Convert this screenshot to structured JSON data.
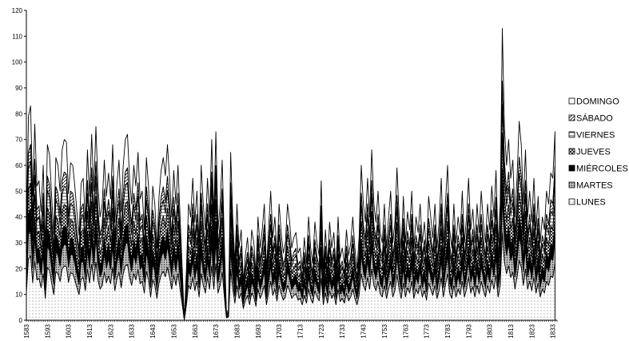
{
  "chart_data": {
    "type": "area",
    "stacked": true,
    "title": "",
    "xlabel": "",
    "ylabel": "",
    "ylim": [
      0,
      120
    ],
    "yticks": [
      0,
      10,
      20,
      30,
      40,
      50,
      60,
      70,
      80,
      90,
      100,
      110,
      120
    ],
    "xlim": [
      1583,
      1835
    ],
    "xticks": [
      1583,
      1593,
      1603,
      1613,
      1623,
      1633,
      1643,
      1653,
      1663,
      1673,
      1683,
      1693,
      1703,
      1713,
      1723,
      1733,
      1743,
      1753,
      1763,
      1773,
      1783,
      1793,
      1803,
      1813,
      1823,
      1833
    ],
    "xtick_labels": [
      "1583",
      "1593",
      "1603",
      "1613",
      "1623",
      "1633",
      "1643",
      "1653",
      "1663",
      "1673",
      "1683",
      "1693",
      "1703",
      "1713",
      "1723",
      "1733",
      "1743",
      "1753",
      "1763",
      "1773",
      "1783",
      "1793",
      "1803",
      "1813",
      "1823",
      "1833"
    ],
    "grid": false,
    "legend_position": "right",
    "series_colors": {
      "DOMINGO": "#ffffff",
      "SÁBADO": "#bdbdbd",
      "VIERNES": "#e6e6e6",
      "JUEVES": "#9a9a9a",
      "MIÉRCOLES": "#000000",
      "MARTES": "#6e6e6e",
      "LUNES": "#f4f4f4"
    },
    "total_anchors": [
      [
        1583,
        35
      ],
      [
        1584,
        79
      ],
      [
        1585,
        83
      ],
      [
        1586,
        48
      ],
      [
        1587,
        76
      ],
      [
        1588,
        52
      ],
      [
        1589,
        54
      ],
      [
        1590,
        42
      ],
      [
        1591,
        60
      ],
      [
        1592,
        28
      ],
      [
        1593,
        68
      ],
      [
        1594,
        64
      ],
      [
        1595,
        48
      ],
      [
        1596,
        33
      ],
      [
        1597,
        63
      ],
      [
        1598,
        60
      ],
      [
        1599,
        50
      ],
      [
        1600,
        66
      ],
      [
        1601,
        70
      ],
      [
        1602,
        69
      ],
      [
        1603,
        49
      ],
      [
        1604,
        61
      ],
      [
        1605,
        60
      ],
      [
        1606,
        52
      ],
      [
        1607,
        42
      ],
      [
        1608,
        33
      ],
      [
        1609,
        53
      ],
      [
        1610,
        55
      ],
      [
        1611,
        38
      ],
      [
        1612,
        66
      ],
      [
        1613,
        48
      ],
      [
        1614,
        72
      ],
      [
        1615,
        50
      ],
      [
        1616,
        75
      ],
      [
        1617,
        52
      ],
      [
        1618,
        40
      ],
      [
        1619,
        45
      ],
      [
        1620,
        62
      ],
      [
        1621,
        48
      ],
      [
        1622,
        57
      ],
      [
        1623,
        47
      ],
      [
        1624,
        68
      ],
      [
        1625,
        38
      ],
      [
        1626,
        53
      ],
      [
        1627,
        62
      ],
      [
        1628,
        42
      ],
      [
        1629,
        60
      ],
      [
        1630,
        70
      ],
      [
        1631,
        72
      ],
      [
        1632,
        55
      ],
      [
        1633,
        45
      ],
      [
        1634,
        60
      ],
      [
        1635,
        52
      ],
      [
        1636,
        65
      ],
      [
        1637,
        47
      ],
      [
        1638,
        50
      ],
      [
        1639,
        35
      ],
      [
        1640,
        63
      ],
      [
        1641,
        52
      ],
      [
        1642,
        30
      ],
      [
        1643,
        52
      ],
      [
        1644,
        45
      ],
      [
        1645,
        28
      ],
      [
        1646,
        48
      ],
      [
        1647,
        58
      ],
      [
        1648,
        63
      ],
      [
        1649,
        56
      ],
      [
        1650,
        68
      ],
      [
        1651,
        55
      ],
      [
        1652,
        40
      ],
      [
        1653,
        58
      ],
      [
        1654,
        45
      ],
      [
        1655,
        60
      ],
      [
        1656,
        40
      ],
      [
        1657,
        20
      ],
      [
        1658,
        0
      ],
      [
        1659,
        20
      ],
      [
        1660,
        45
      ],
      [
        1661,
        40
      ],
      [
        1662,
        55
      ],
      [
        1663,
        38
      ],
      [
        1664,
        50
      ],
      [
        1665,
        30
      ],
      [
        1666,
        60
      ],
      [
        1667,
        45
      ],
      [
        1668,
        35
      ],
      [
        1669,
        55
      ],
      [
        1670,
        40
      ],
      [
        1671,
        70
      ],
      [
        1672,
        40
      ],
      [
        1673,
        73
      ],
      [
        1674,
        35
      ],
      [
        1675,
        45
      ],
      [
        1676,
        62
      ],
      [
        1677,
        30
      ],
      [
        1678,
        3
      ],
      [
        1679,
        4
      ],
      [
        1680,
        65
      ],
      [
        1681,
        40
      ],
      [
        1682,
        22
      ],
      [
        1683,
        45
      ],
      [
        1684,
        28
      ],
      [
        1685,
        35
      ],
      [
        1686,
        15
      ],
      [
        1687,
        25
      ],
      [
        1688,
        32
      ],
      [
        1689,
        20
      ],
      [
        1690,
        35
      ],
      [
        1691,
        30
      ],
      [
        1692,
        18
      ],
      [
        1693,
        40
      ],
      [
        1694,
        28
      ],
      [
        1695,
        35
      ],
      [
        1696,
        45
      ],
      [
        1697,
        20
      ],
      [
        1698,
        35
      ],
      [
        1699,
        50
      ],
      [
        1700,
        32
      ],
      [
        1701,
        40
      ],
      [
        1702,
        25
      ],
      [
        1703,
        45
      ],
      [
        1704,
        34
      ],
      [
        1705,
        26
      ],
      [
        1706,
        30
      ],
      [
        1707,
        45
      ],
      [
        1708,
        38
      ],
      [
        1709,
        28
      ],
      [
        1710,
        32
      ],
      [
        1711,
        34
      ],
      [
        1712,
        26
      ],
      [
        1713,
        28
      ],
      [
        1714,
        20
      ],
      [
        1715,
        32
      ],
      [
        1716,
        22
      ],
      [
        1717,
        40
      ],
      [
        1718,
        28
      ],
      [
        1719,
        22
      ],
      [
        1720,
        38
      ],
      [
        1721,
        30
      ],
      [
        1722,
        25
      ],
      [
        1723,
        54
      ],
      [
        1724,
        20
      ],
      [
        1725,
        35
      ],
      [
        1726,
        22
      ],
      [
        1727,
        38
      ],
      [
        1728,
        28
      ],
      [
        1729,
        34
      ],
      [
        1730,
        20
      ],
      [
        1731,
        40
      ],
      [
        1732,
        24
      ],
      [
        1733,
        28
      ],
      [
        1734,
        22
      ],
      [
        1735,
        35
      ],
      [
        1736,
        25
      ],
      [
        1737,
        30
      ],
      [
        1738,
        40
      ],
      [
        1739,
        28
      ],
      [
        1740,
        20
      ],
      [
        1741,
        32
      ],
      [
        1742,
        60
      ],
      [
        1743,
        45
      ],
      [
        1744,
        38
      ],
      [
        1745,
        55
      ],
      [
        1746,
        40
      ],
      [
        1747,
        66
      ],
      [
        1748,
        45
      ],
      [
        1749,
        38
      ],
      [
        1750,
        50
      ],
      [
        1751,
        34
      ],
      [
        1752,
        30
      ],
      [
        1753,
        45
      ],
      [
        1754,
        28
      ],
      [
        1755,
        40
      ],
      [
        1756,
        50
      ],
      [
        1757,
        30
      ],
      [
        1758,
        38
      ],
      [
        1759,
        59
      ],
      [
        1760,
        40
      ],
      [
        1761,
        28
      ],
      [
        1762,
        48
      ],
      [
        1763,
        30
      ],
      [
        1764,
        42
      ],
      [
        1765,
        35
      ],
      [
        1766,
        50
      ],
      [
        1767,
        28
      ],
      [
        1768,
        40
      ],
      [
        1769,
        34
      ],
      [
        1770,
        45
      ],
      [
        1771,
        30
      ],
      [
        1772,
        38
      ],
      [
        1773,
        26
      ],
      [
        1774,
        48
      ],
      [
        1775,
        40
      ],
      [
        1776,
        32
      ],
      [
        1777,
        45
      ],
      [
        1778,
        28
      ],
      [
        1779,
        38
      ],
      [
        1780,
        55
      ],
      [
        1781,
        30
      ],
      [
        1782,
        45
      ],
      [
        1783,
        60
      ],
      [
        1784,
        35
      ],
      [
        1785,
        28
      ],
      [
        1786,
        45
      ],
      [
        1787,
        30
      ],
      [
        1788,
        40
      ],
      [
        1789,
        33
      ],
      [
        1790,
        50
      ],
      [
        1791,
        30
      ],
      [
        1792,
        40
      ],
      [
        1793,
        55
      ],
      [
        1794,
        35
      ],
      [
        1795,
        43
      ],
      [
        1796,
        30
      ],
      [
        1797,
        45
      ],
      [
        1798,
        34
      ],
      [
        1799,
        50
      ],
      [
        1800,
        38
      ],
      [
        1801,
        30
      ],
      [
        1802,
        45
      ],
      [
        1803,
        35
      ],
      [
        1804,
        52
      ],
      [
        1805,
        40
      ],
      [
        1806,
        58
      ],
      [
        1807,
        30
      ],
      [
        1808,
        45
      ],
      [
        1809,
        113
      ],
      [
        1810,
        75
      ],
      [
        1811,
        60
      ],
      [
        1812,
        70
      ],
      [
        1813,
        55
      ],
      [
        1814,
        62
      ],
      [
        1815,
        40
      ],
      [
        1816,
        55
      ],
      [
        1817,
        77
      ],
      [
        1818,
        68
      ],
      [
        1819,
        45
      ],
      [
        1820,
        66
      ],
      [
        1821,
        40
      ],
      [
        1822,
        50
      ],
      [
        1823,
        38
      ],
      [
        1824,
        55
      ],
      [
        1825,
        35
      ],
      [
        1826,
        48
      ],
      [
        1827,
        30
      ],
      [
        1828,
        40
      ],
      [
        1829,
        35
      ],
      [
        1830,
        50
      ],
      [
        1831,
        45
      ],
      [
        1832,
        57
      ],
      [
        1833,
        55
      ],
      [
        1834,
        73
      ]
    ],
    "layer_shares": [
      0.3,
      0.12,
      0.1,
      0.12,
      0.1,
      0.08,
      0.18
    ]
  },
  "legend": [
    {
      "label": "DOMINGO",
      "icon": "blank-square-icon"
    },
    {
      "label": "SÁBADO",
      "icon": "diagonal-hatch-square-icon"
    },
    {
      "label": "VIERNES",
      "icon": "horizontal-hatch-square-icon"
    },
    {
      "label": "JUEVES",
      "icon": "cross-hatch-square-icon"
    },
    {
      "label": "MIÉRCOLES",
      "icon": "solid-black-square-icon"
    },
    {
      "label": "MARTES",
      "icon": "dense-dot-square-icon"
    },
    {
      "label": "LUNES",
      "icon": "light-dot-square-icon"
    }
  ]
}
